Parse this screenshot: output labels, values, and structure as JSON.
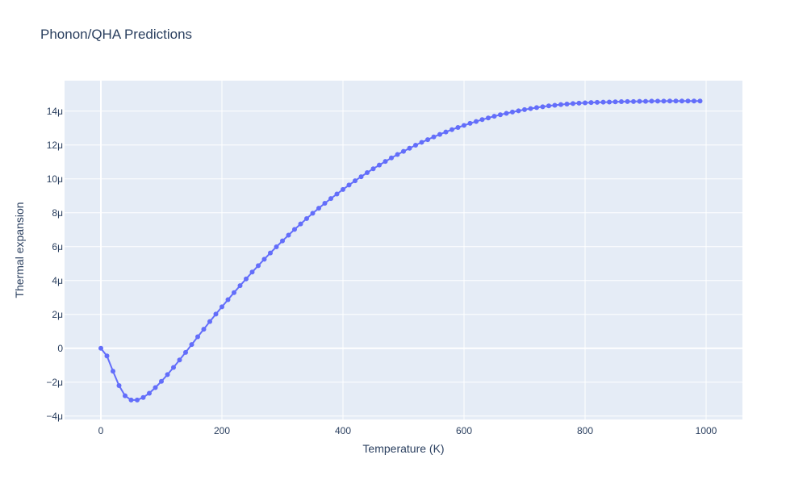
{
  "chart_data": {
    "type": "line",
    "title": "Phonon/QHA Predictions",
    "xlabel": "Temperature (K)",
    "ylabel": "Thermal expansion",
    "xlim": [
      -60,
      1060
    ],
    "ylim": [
      -4.2,
      15.8
    ],
    "x_ticks": [
      0,
      200,
      400,
      600,
      800,
      1000
    ],
    "x_tick_labels": [
      "0",
      "200",
      "400",
      "600",
      "800",
      "1000"
    ],
    "y_ticks": [
      -4,
      -2,
      0,
      2,
      4,
      6,
      8,
      10,
      12,
      14
    ],
    "y_tick_labels": [
      "−4μ",
      "−2μ",
      "0",
      "2μ",
      "4μ",
      "6μ",
      "8μ",
      "10μ",
      "12μ",
      "14μ"
    ],
    "grid": true,
    "series": [
      {
        "mode": "lines+markers",
        "color": "#636efa",
        "x": [
          0,
          10,
          20,
          30,
          40,
          50,
          60,
          70,
          80,
          90,
          100,
          110,
          120,
          130,
          140,
          150,
          160,
          170,
          180,
          190,
          200,
          210,
          220,
          230,
          240,
          250,
          260,
          270,
          280,
          290,
          300,
          310,
          320,
          330,
          340,
          350,
          360,
          370,
          380,
          390,
          400,
          410,
          420,
          430,
          440,
          450,
          460,
          470,
          480,
          490,
          500,
          510,
          520,
          530,
          540,
          550,
          560,
          570,
          580,
          590,
          600,
          610,
          620,
          630,
          640,
          650,
          660,
          670,
          680,
          690,
          700,
          710,
          720,
          730,
          740,
          750,
          760,
          770,
          780,
          790,
          800,
          810,
          820,
          830,
          840,
          850,
          860,
          870,
          880,
          890,
          900,
          910,
          920,
          930,
          940,
          950,
          960,
          970,
          980,
          990
        ],
        "y": [
          0.0,
          -0.45,
          -1.35,
          -2.2,
          -2.8,
          -3.05,
          -3.05,
          -2.9,
          -2.65,
          -2.32,
          -1.95,
          -1.55,
          -1.13,
          -0.69,
          -0.24,
          0.22,
          0.68,
          1.13,
          1.58,
          2.02,
          2.45,
          2.87,
          3.29,
          3.7,
          4.1,
          4.5,
          4.88,
          5.26,
          5.63,
          5.99,
          6.34,
          6.68,
          7.02,
          7.34,
          7.66,
          7.97,
          8.27,
          8.56,
          8.84,
          9.11,
          9.38,
          9.64,
          9.89,
          10.13,
          10.37,
          10.6,
          10.82,
          11.03,
          11.24,
          11.44,
          11.63,
          11.81,
          11.99,
          12.16,
          12.32,
          12.48,
          12.63,
          12.77,
          12.91,
          13.04,
          13.16,
          13.28,
          13.39,
          13.5,
          13.6,
          13.7,
          13.79,
          13.87,
          13.95,
          14.02,
          14.09,
          14.15,
          14.21,
          14.26,
          14.31,
          14.35,
          14.39,
          14.42,
          14.45,
          14.47,
          14.49,
          14.51,
          14.52,
          14.53,
          14.54,
          14.55,
          14.56,
          14.57,
          14.57,
          14.58,
          14.58,
          14.59,
          14.59,
          14.59,
          14.6,
          14.6,
          14.6,
          14.6,
          14.6,
          14.6
        ]
      }
    ]
  }
}
